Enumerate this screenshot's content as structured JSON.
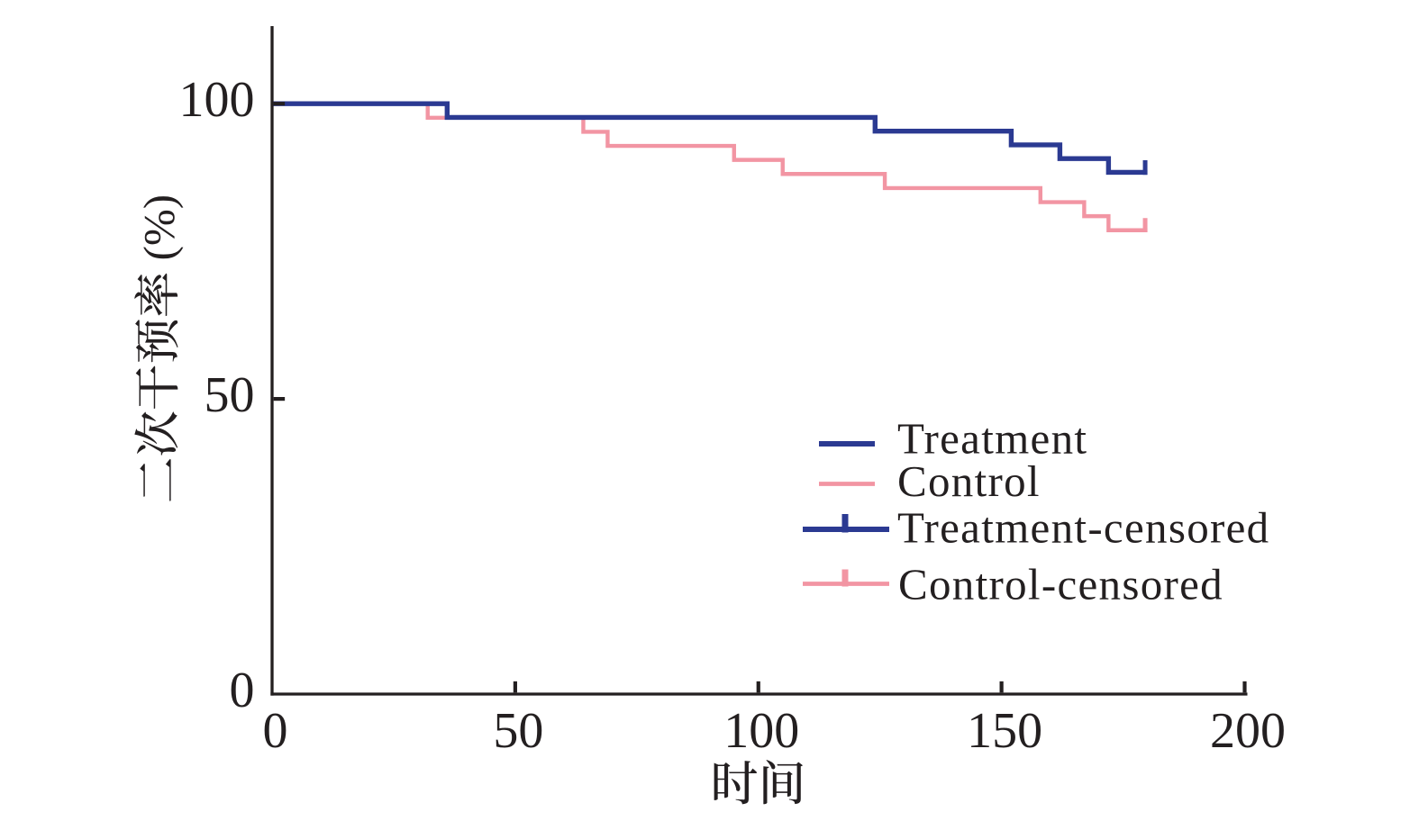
{
  "figure": {
    "description": "Kaplan-Meier style step chart of secondary intervention rate over time",
    "background": "#ffffff"
  },
  "chart_data": {
    "type": "line",
    "variant": "kaplan_meier_step",
    "title": "",
    "xlabel": "时间",
    "ylabel": "二次干预率 (%)",
    "xlim": [
      0,
      200
    ],
    "ylim": [
      0,
      100
    ],
    "grid": false,
    "axis_color": "#231f20",
    "text_color": "#231f20",
    "xticks": [
      0,
      50,
      100,
      150,
      200
    ],
    "xtick_labels": [
      "0",
      "50",
      "100",
      "150",
      "200"
    ],
    "yticks": [
      0,
      50,
      100
    ],
    "ytick_labels": [
      "0",
      "50",
      "100"
    ],
    "legend_position": "inside lower right",
    "series": [
      {
        "name": "Treatment",
        "color": "#2b3a92",
        "steps": [
          [
            0,
            100
          ],
          [
            36,
            97.67
          ],
          [
            124,
            95.35
          ],
          [
            152,
            93.02
          ],
          [
            162,
            90.7
          ],
          [
            172,
            88.37
          ]
        ],
        "end_time": 180,
        "censored_times": [
          180
        ]
      },
      {
        "name": "Control",
        "color": "#f295a3",
        "steps": [
          [
            0,
            100
          ],
          [
            32,
            97.62
          ],
          [
            64,
            95.24
          ],
          [
            69,
            92.86
          ],
          [
            95,
            90.48
          ],
          [
            105,
            88.1
          ],
          [
            126,
            85.71
          ],
          [
            158,
            83.33
          ],
          [
            167,
            80.95
          ],
          [
            172,
            78.57
          ]
        ],
        "end_time": 180,
        "censored_times": [
          180
        ]
      }
    ],
    "legend": [
      {
        "label": "Treatment",
        "swatch": "line",
        "color": "#2b3a92"
      },
      {
        "label": "Control",
        "swatch": "line",
        "color": "#f295a3"
      },
      {
        "label": "Treatment-censored",
        "swatch": "line_with_censor_tick",
        "color": "#2b3a92"
      },
      {
        "label": "Control-censored",
        "swatch": "line_with_censor_tick",
        "color": "#f295a3"
      }
    ]
  }
}
